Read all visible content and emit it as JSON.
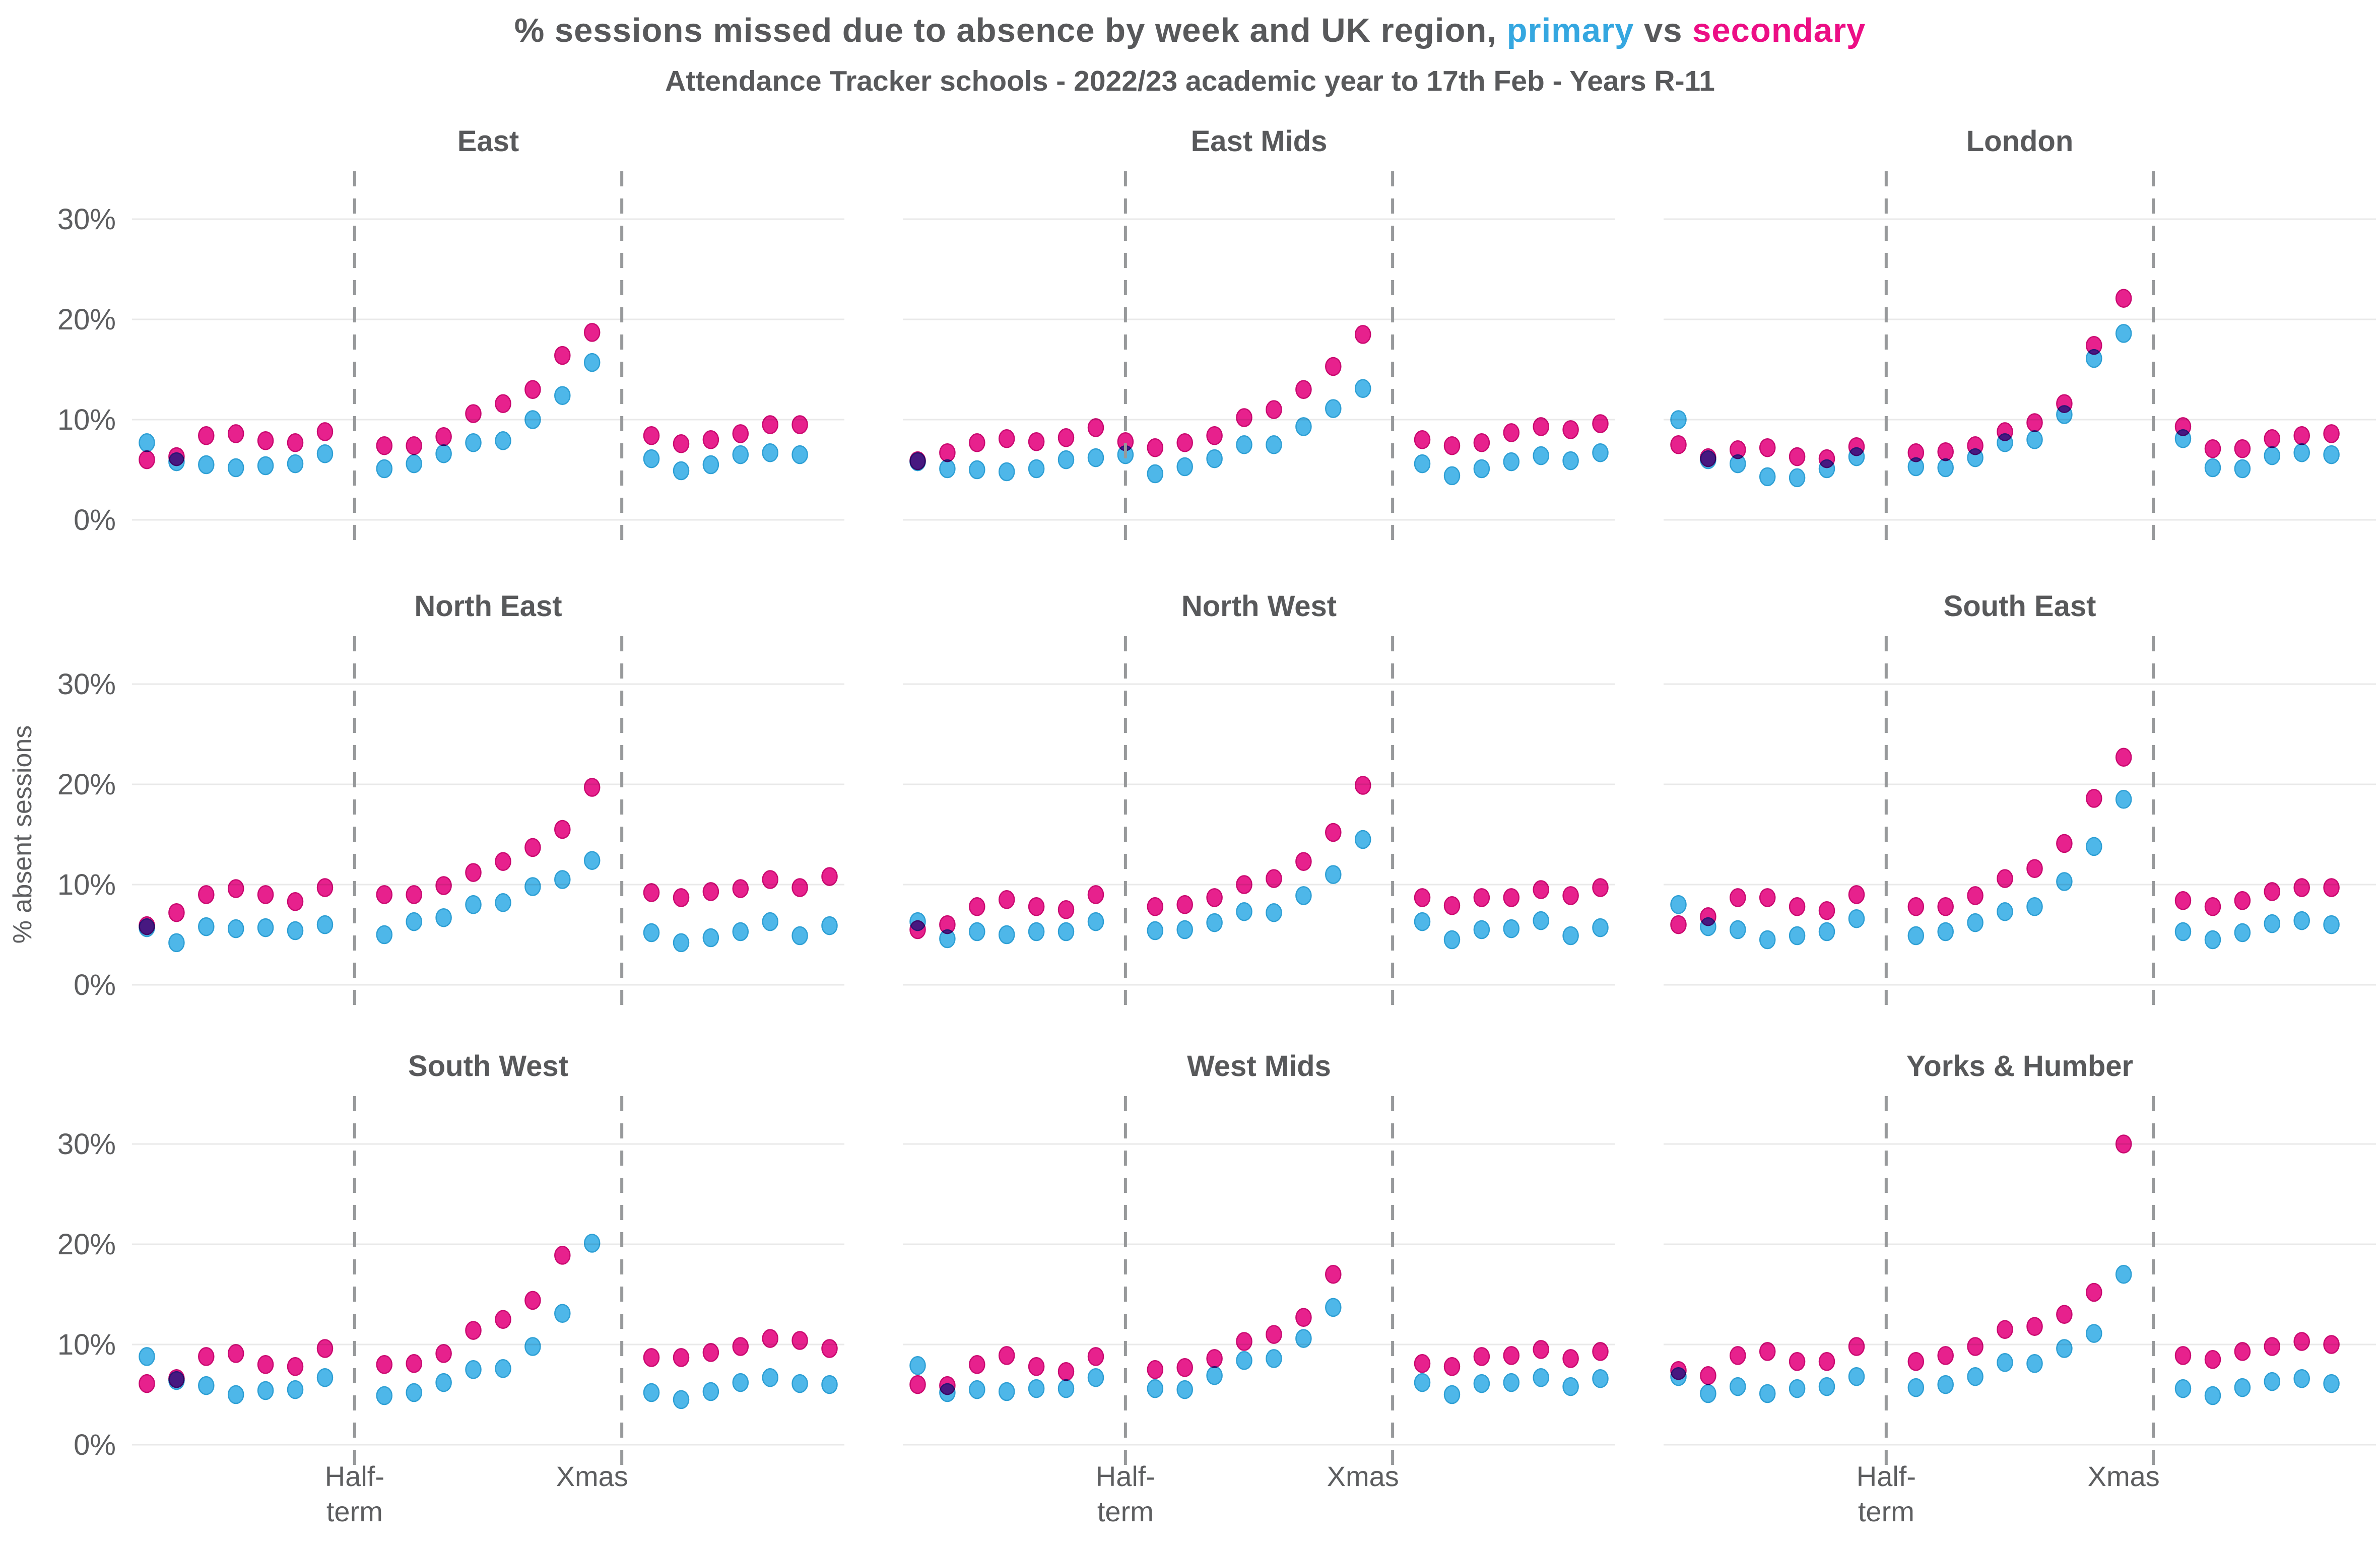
{
  "header": {
    "title_main": "% sessions missed due to absence by week and UK region, ",
    "title_primary": "primary",
    "title_vs": " vs ",
    "title_secondary": "secondary",
    "subtitle": "Attendance Tracker schools - 2022/23 academic year to 17th Feb - Years R-11"
  },
  "colors": {
    "title_text": "#58595B",
    "axis_text": "#5D5E60",
    "primary": "#35A7E0",
    "secondary": "#EC0E85",
    "primary_dot_fill": "#4EB7E9",
    "primary_dot_stroke": "#2E9FD4",
    "secondary_dot_fill": "#E7218D",
    "secondary_dot_stroke": "#C90970",
    "gridline": "#E9E9E9",
    "divider": "#97999B",
    "background": "#FFFFFF"
  },
  "chart_data": {
    "type": "scatter",
    "title": "% sessions missed due to absence by week and UK region, primary vs secondary",
    "subtitle": "Attendance Tracker schools - 2022/23 academic year to 17th Feb - Years R-11",
    "ylabel": "% absent sessions",
    "yticks": [
      "0%",
      "10%",
      "20%",
      "30%"
    ],
    "ytick_values": [
      0,
      10,
      20,
      30
    ],
    "ylim": [
      0,
      33
    ],
    "grid": "horizontal-only",
    "legend": "in-title",
    "series_names": [
      "primary",
      "secondary"
    ],
    "x_axis": {
      "unit": "school week",
      "n_slots": 24,
      "half_term_divider_slot": 8,
      "xmas_divider_slot": 17,
      "xmas_label_slot": 15.5,
      "labels": {
        "half_term_line1": "Half-",
        "half_term_line2": "term",
        "xmas": "Xmas"
      }
    },
    "facet_grid": [
      [
        "East",
        "East Mids",
        "London"
      ],
      [
        "North East",
        "North West",
        "South East"
      ],
      [
        "South West",
        "West Mids",
        "Yorks & Humber"
      ]
    ],
    "panels": [
      {
        "region": "East",
        "secondary": {
          "slots": [
            1,
            2,
            3,
            4,
            5,
            6,
            7,
            9,
            10,
            11,
            12,
            13,
            14,
            15,
            16,
            18,
            19,
            20,
            21,
            22,
            23
          ],
          "values": [
            6.0,
            6.3,
            8.4,
            8.6,
            7.9,
            7.7,
            8.8,
            7.4,
            7.4,
            8.3,
            10.6,
            11.6,
            13.0,
            16.4,
            18.7,
            8.4,
            7.6,
            8.0,
            8.6,
            9.5,
            9.5
          ]
        },
        "primary": {
          "slots": [
            1,
            2,
            3,
            4,
            5,
            6,
            7,
            9,
            10,
            11,
            12,
            13,
            14,
            15,
            16,
            18,
            19,
            20,
            21,
            22,
            23
          ],
          "values": [
            7.7,
            5.8,
            5.5,
            5.2,
            5.4,
            5.6,
            6.6,
            5.1,
            5.6,
            6.6,
            7.7,
            7.9,
            10.0,
            12.4,
            15.7,
            6.1,
            4.9,
            5.5,
            6.5,
            6.7,
            6.5
          ]
        }
      },
      {
        "region": "East Mids",
        "secondary": {
          "slots": [
            1,
            2,
            3,
            4,
            5,
            6,
            7,
            8,
            9,
            10,
            11,
            12,
            13,
            14,
            15,
            16,
            18,
            19,
            20,
            21,
            22,
            23,
            24
          ],
          "values": [
            5.9,
            6.7,
            7.7,
            8.1,
            7.8,
            8.2,
            9.2,
            7.8,
            7.2,
            7.7,
            8.4,
            10.2,
            11.0,
            13.0,
            15.3,
            18.5,
            8.0,
            7.4,
            7.7,
            8.7,
            9.3,
            9.0,
            9.6
          ]
        },
        "primary": {
          "slots": [
            1,
            2,
            3,
            4,
            5,
            6,
            7,
            8,
            9,
            10,
            11,
            12,
            13,
            14,
            15,
            16,
            18,
            19,
            20,
            21,
            22,
            23,
            24
          ],
          "values": [
            5.8,
            5.1,
            5.0,
            4.8,
            5.1,
            6.0,
            6.2,
            6.5,
            4.6,
            5.3,
            6.1,
            7.5,
            7.5,
            9.3,
            11.1,
            13.1,
            5.6,
            4.4,
            5.1,
            5.8,
            6.4,
            5.9,
            6.7
          ]
        }
      },
      {
        "region": "London",
        "secondary": {
          "slots": [
            1,
            2,
            3,
            4,
            5,
            6,
            7,
            9,
            10,
            11,
            12,
            13,
            14,
            15,
            16,
            18,
            19,
            20,
            21,
            22,
            23
          ],
          "values": [
            7.5,
            6.2,
            7.0,
            7.2,
            6.3,
            6.1,
            7.3,
            6.7,
            6.8,
            7.4,
            8.8,
            9.7,
            11.6,
            17.4,
            22.1,
            9.3,
            7.1,
            7.1,
            8.1,
            8.4,
            8.6
          ]
        },
        "primary": {
          "slots": [
            1,
            2,
            3,
            4,
            5,
            6,
            7,
            9,
            10,
            11,
            12,
            13,
            14,
            15,
            16,
            18,
            19,
            20,
            21,
            22,
            23
          ],
          "values": [
            10.0,
            6.0,
            5.6,
            4.3,
            4.2,
            5.1,
            6.3,
            5.3,
            5.2,
            6.2,
            7.7,
            8.0,
            10.5,
            16.1,
            18.6,
            8.1,
            5.2,
            5.1,
            6.4,
            6.7,
            6.5
          ]
        }
      },
      {
        "region": "North East",
        "secondary": {
          "slots": [
            1,
            2,
            3,
            4,
            5,
            6,
            7,
            9,
            10,
            11,
            12,
            13,
            14,
            15,
            16,
            18,
            19,
            20,
            21,
            22,
            23,
            24
          ],
          "values": [
            5.9,
            7.2,
            9.0,
            9.6,
            9.0,
            8.3,
            9.7,
            9.0,
            9.0,
            9.9,
            11.2,
            12.3,
            13.7,
            15.5,
            19.7,
            9.2,
            8.7,
            9.3,
            9.6,
            10.5,
            9.7,
            10.8
          ]
        },
        "primary": {
          "slots": [
            1,
            2,
            3,
            4,
            5,
            6,
            7,
            9,
            10,
            11,
            12,
            13,
            14,
            15,
            16,
            18,
            19,
            20,
            21,
            22,
            23,
            24
          ],
          "values": [
            5.7,
            4.2,
            5.8,
            5.6,
            5.7,
            5.4,
            6.0,
            5.0,
            6.3,
            6.7,
            8.0,
            8.2,
            9.8,
            10.5,
            12.4,
            5.2,
            4.2,
            4.7,
            5.3,
            6.3,
            4.9,
            5.9
          ]
        }
      },
      {
        "region": "North West",
        "secondary": {
          "slots": [
            1,
            2,
            3,
            4,
            5,
            6,
            7,
            9,
            10,
            11,
            12,
            13,
            14,
            15,
            16,
            18,
            19,
            20,
            21,
            22,
            23,
            24
          ],
          "values": [
            5.5,
            6.0,
            7.8,
            8.5,
            7.8,
            7.5,
            9.0,
            7.8,
            8.0,
            8.7,
            10.0,
            10.6,
            12.3,
            15.2,
            19.9,
            8.7,
            7.9,
            8.7,
            8.7,
            9.5,
            8.9,
            9.7
          ]
        },
        "primary": {
          "slots": [
            1,
            2,
            3,
            4,
            5,
            6,
            7,
            9,
            10,
            11,
            12,
            13,
            14,
            15,
            16,
            18,
            19,
            20,
            21,
            22,
            23,
            24
          ],
          "values": [
            6.3,
            4.6,
            5.3,
            5.0,
            5.3,
            5.3,
            6.3,
            5.4,
            5.5,
            6.2,
            7.3,
            7.2,
            8.9,
            11.0,
            14.5,
            6.3,
            4.5,
            5.5,
            5.6,
            6.4,
            4.9,
            5.7
          ]
        }
      },
      {
        "region": "South East",
        "secondary": {
          "slots": [
            1,
            2,
            3,
            4,
            5,
            6,
            7,
            9,
            10,
            11,
            12,
            13,
            14,
            15,
            16,
            18,
            19,
            20,
            21,
            22,
            23
          ],
          "values": [
            6.0,
            6.8,
            8.7,
            8.7,
            7.8,
            7.4,
            9.0,
            7.8,
            7.8,
            8.9,
            10.6,
            11.6,
            14.1,
            18.6,
            22.7,
            8.4,
            7.8,
            8.4,
            9.3,
            9.7,
            9.7
          ]
        },
        "primary": {
          "slots": [
            1,
            2,
            3,
            4,
            5,
            6,
            7,
            9,
            10,
            11,
            12,
            13,
            14,
            15,
            16,
            18,
            19,
            20,
            21,
            22,
            23
          ],
          "values": [
            8.0,
            5.8,
            5.5,
            4.5,
            4.9,
            5.3,
            6.6,
            4.9,
            5.3,
            6.2,
            7.3,
            7.8,
            10.3,
            13.8,
            18.5,
            5.3,
            4.5,
            5.2,
            6.1,
            6.4,
            6.0
          ]
        }
      },
      {
        "region": "South West",
        "secondary": {
          "slots": [
            1,
            2,
            3,
            4,
            5,
            6,
            7,
            9,
            10,
            11,
            12,
            13,
            14,
            15,
            18,
            19,
            20,
            21,
            22,
            23,
            24
          ],
          "values": [
            6.1,
            6.6,
            8.8,
            9.1,
            8.0,
            7.8,
            9.6,
            8.0,
            8.1,
            9.1,
            11.4,
            12.5,
            14.4,
            18.9,
            8.7,
            8.7,
            9.2,
            9.8,
            10.6,
            10.4,
            9.6
          ]
        },
        "primary": {
          "slots": [
            1,
            2,
            3,
            4,
            5,
            6,
            7,
            9,
            10,
            11,
            12,
            13,
            14,
            15,
            16,
            18,
            19,
            20,
            21,
            22,
            23,
            24
          ],
          "values": [
            8.8,
            6.4,
            5.9,
            5.0,
            5.4,
            5.5,
            6.7,
            4.9,
            5.2,
            6.2,
            7.5,
            7.6,
            9.8,
            13.1,
            20.1,
            5.2,
            4.5,
            5.3,
            6.2,
            6.7,
            6.1,
            6.0
          ]
        }
      },
      {
        "region": "West Mids",
        "secondary": {
          "slots": [
            1,
            2,
            3,
            4,
            5,
            6,
            7,
            9,
            10,
            11,
            12,
            13,
            14,
            15,
            18,
            19,
            20,
            21,
            22,
            23,
            24
          ],
          "values": [
            6.0,
            5.9,
            8.0,
            8.9,
            7.8,
            7.3,
            8.8,
            7.5,
            7.7,
            8.6,
            10.3,
            11.0,
            12.7,
            17.0,
            8.1,
            7.8,
            8.8,
            8.9,
            9.5,
            8.6,
            9.3
          ]
        },
        "primary": {
          "slots": [
            1,
            2,
            3,
            4,
            5,
            6,
            7,
            9,
            10,
            11,
            12,
            13,
            14,
            15,
            18,
            19,
            20,
            21,
            22,
            23,
            24
          ],
          "values": [
            7.9,
            5.2,
            5.5,
            5.3,
            5.6,
            5.6,
            6.7,
            5.6,
            5.5,
            6.9,
            8.4,
            8.6,
            10.6,
            13.7,
            6.2,
            5.0,
            6.1,
            6.2,
            6.7,
            5.8,
            6.6
          ]
        }
      },
      {
        "region": "Yorks & Humber",
        "secondary": {
          "slots": [
            1,
            2,
            3,
            4,
            5,
            6,
            7,
            9,
            10,
            11,
            12,
            13,
            14,
            15,
            16,
            18,
            19,
            20,
            21,
            22,
            23
          ],
          "values": [
            7.4,
            6.9,
            8.9,
            9.3,
            8.3,
            8.3,
            9.8,
            8.3,
            8.9,
            9.8,
            11.5,
            11.8,
            13.0,
            15.2,
            30.0,
            8.9,
            8.5,
            9.3,
            9.8,
            10.3,
            10.0
          ]
        },
        "primary": {
          "slots": [
            1,
            2,
            3,
            4,
            5,
            6,
            7,
            9,
            10,
            11,
            12,
            13,
            14,
            15,
            16,
            18,
            19,
            20,
            21,
            22,
            23
          ],
          "values": [
            6.8,
            5.1,
            5.8,
            5.1,
            5.6,
            5.8,
            6.8,
            5.7,
            6.0,
            6.8,
            8.2,
            8.1,
            9.6,
            11.1,
            17.0,
            5.6,
            4.9,
            5.7,
            6.3,
            6.6,
            6.1
          ]
        }
      }
    ]
  }
}
